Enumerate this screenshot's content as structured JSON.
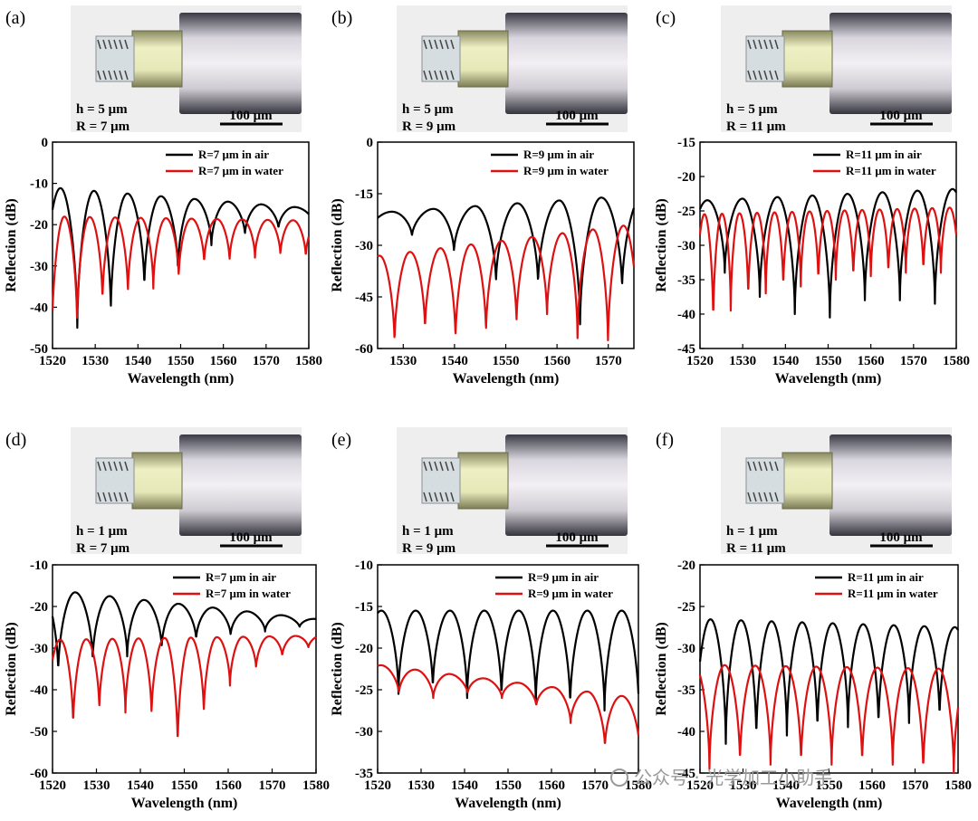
{
  "colors": {
    "air": "#000000",
    "water": "#dd1111",
    "fiber_dark": "#2e2e36",
    "scalebar": "#000000"
  },
  "icons": {
    "watermark": "chat-bubble-icon"
  },
  "watermark_text": "公众号 · 光学加工小助手",
  "chart_data": [
    {
      "panel": "(a)",
      "type": "line",
      "micro_labels": [
        "h = 5 μm",
        "R = 7 μm"
      ],
      "scale_label": "100 μm",
      "xlabel": "Wavelength (nm)",
      "ylabel": "Reflection (dB)",
      "xlim": [
        1520,
        1580
      ],
      "ylim": [
        -50,
        0
      ],
      "xticks": [
        1520,
        1530,
        1540,
        1550,
        1560,
        1570,
        1580
      ],
      "yticks": [
        0,
        -10,
        -20,
        -30,
        -40,
        -50
      ],
      "legend_position": "top-right",
      "series": [
        {
          "name": "R=7 μm in air",
          "color": "air",
          "period": 7.85,
          "phase": 1525.8,
          "top_start": -11,
          "top_end": -16,
          "dips": [
            -45,
            -41.5,
            -35.5,
            -31,
            -25,
            -22.5,
            -21,
            -19
          ]
        },
        {
          "name": "R=7 μm in water",
          "color": "water",
          "period": 5.95,
          "phase": 1519.8,
          "top_start": -18,
          "top_end": -19,
          "dips": [
            -50,
            -44.5,
            -39,
            -37,
            -35.5,
            -33,
            -29.5,
            -29,
            -28,
            -27.5,
            -28
          ]
        }
      ]
    },
    {
      "panel": "(b)",
      "type": "line",
      "micro_labels": [
        "h = 5 μm",
        "R = 9 μm"
      ],
      "scale_label": "100 μm",
      "xlabel": "Wavelength (nm)",
      "ylabel": "Reflection (dB)",
      "xlim": [
        1525,
        1575
      ],
      "ylim": [
        -60,
        0
      ],
      "xticks": [
        1530,
        1540,
        1550,
        1560,
        1570
      ],
      "yticks": [
        0,
        -15,
        -30,
        -45,
        -60
      ],
      "legend_position": "top-right",
      "series": [
        {
          "name": "R=9 μm in air",
          "color": "air",
          "period": 8.2,
          "phase": 1523.5,
          "top_start": -21,
          "top_end": -15,
          "dips": [
            -26,
            -27.5,
            -32,
            -41,
            -41.5,
            -53,
            -43
          ]
        },
        {
          "name": "R=9 μm in water",
          "color": "water",
          "period": 5.95,
          "phase": 1528.3,
          "top_start": -34,
          "top_end": -23,
          "dips": [
            -59,
            -55,
            -58,
            -56,
            -53,
            -51,
            -57,
            -59
          ]
        }
      ]
    },
    {
      "panel": "(c)",
      "type": "line",
      "micro_labels": [
        "h = 5 μm",
        "R = 11 μm"
      ],
      "scale_label": "100 μm",
      "xlabel": "Wavelength (nm)",
      "ylabel": "Reflection (dB)",
      "xlim": [
        1520,
        1580
      ],
      "ylim": [
        -45,
        -15
      ],
      "xticks": [
        1520,
        1530,
        1540,
        1550,
        1560,
        1570,
        1580
      ],
      "yticks": [
        -15,
        -20,
        -25,
        -30,
        -35,
        -40,
        -45
      ],
      "legend_position": "top-right",
      "series": [
        {
          "name": "R=11 μm in air",
          "color": "air",
          "period": 8.2,
          "phase": 1525.8,
          "top_start": -23.5,
          "top_end": -21.8,
          "dips": [
            -34,
            -37.5,
            -40,
            -40.5,
            -38,
            -38,
            -38.5,
            -38
          ]
        },
        {
          "name": "R=11 μm in water",
          "color": "water",
          "period": 4.1,
          "phase": 1523.1,
          "top_start": -25.5,
          "top_end": -24.5,
          "dips": [
            -41.5,
            -39.5,
            -38,
            -37,
            -36.5,
            -36,
            -35.5,
            -35,
            -35,
            -34.5,
            -34.5,
            -34,
            -34,
            -34
          ]
        }
      ]
    },
    {
      "panel": "(d)",
      "type": "line",
      "micro_labels": [
        "h = 1 μm",
        "R = 7 μm"
      ],
      "scale_label": "100 μm",
      "xlabel": "Wavelength (nm)",
      "ylabel": "Reflection (dB)",
      "xlim": [
        1520,
        1580
      ],
      "ylim": [
        -60,
        -10
      ],
      "xticks": [
        1520,
        1530,
        1540,
        1550,
        1560,
        1570,
        1580
      ],
      "yticks": [
        -10,
        -20,
        -30,
        -40,
        -50,
        -60
      ],
      "legend_position": "top-right",
      "series": [
        {
          "name": "R=7 μm in air",
          "color": "air",
          "period": 7.85,
          "phase": 1521.3,
          "top_start": -16,
          "top_end": -23,
          "dips": [
            -36,
            -33,
            -32,
            -30,
            -28,
            -27,
            -26,
            -25
          ]
        },
        {
          "name": "R=7 μm in water",
          "color": "water",
          "period": 5.95,
          "phase": 1524.7,
          "top_start": -28,
          "top_end": -27,
          "dips": [
            -49,
            -45,
            -45.5,
            -46.5,
            -54,
            -46,
            -39,
            -35,
            -32,
            -30
          ]
        }
      ]
    },
    {
      "panel": "(e)",
      "type": "line",
      "micro_labels": [
        "h = 1 μm",
        "R = 9 μm"
      ],
      "scale_label": "100 μm",
      "xlabel": "Wavelength (nm)",
      "ylabel": "Reflection (dB)",
      "xlim": [
        1520,
        1580
      ],
      "ylim": [
        -35,
        -10
      ],
      "xticks": [
        1520,
        1530,
        1540,
        1550,
        1560,
        1570,
        1580
      ],
      "yticks": [
        -10,
        -15,
        -20,
        -25,
        -30,
        -35
      ],
      "legend_position": "top-right",
      "series": [
        {
          "name": "R=9 μm in air",
          "color": "air",
          "period": 7.9,
          "phase": 1524.8,
          "top_start": -15.5,
          "top_end": -15.5,
          "dips": [
            -25.5,
            -25,
            -26,
            -26,
            -26.5,
            -27,
            -27.5
          ]
        },
        {
          "name": "R=9 μm in water",
          "color": "water",
          "period": 7.9,
          "phase": 1524.9,
          "top_start": -22,
          "top_end": -26,
          "dips": [
            -25.5,
            -26,
            -25.5,
            -26,
            -27,
            -29,
            -32
          ]
        }
      ]
    },
    {
      "panel": "(f)",
      "type": "line",
      "micro_labels": [
        "h = 1 μm",
        "R = 11 μm"
      ],
      "scale_label": "100 μm",
      "xlabel": "Wavelength (nm)",
      "ylabel": "Reflection (dB)",
      "xlim": [
        1520,
        1580
      ],
      "ylim": [
        -45,
        -20
      ],
      "xticks": [
        1520,
        1530,
        1540,
        1550,
        1560,
        1570,
        1580
      ],
      "yticks": [
        -20,
        -25,
        -30,
        -35,
        -40,
        -45
      ],
      "legend_position": "top-right",
      "series": [
        {
          "name": "R=11 μm in air",
          "color": "air",
          "period": 7.1,
          "phase": 1526.0,
          "top_start": -26.5,
          "top_end": -27.5,
          "dips": [
            -41.5,
            -41,
            -40.5,
            -40,
            -39.5,
            -39.5,
            -39,
            -38.5
          ]
        },
        {
          "name": "R=11 μm in water",
          "color": "water",
          "period": 7.1,
          "phase": 1522.2,
          "top_start": -32,
          "top_end": -32.5,
          "dips": [
            -44.5,
            -44,
            -44,
            -44,
            -44,
            -44,
            -44,
            -45
          ]
        }
      ]
    }
  ]
}
